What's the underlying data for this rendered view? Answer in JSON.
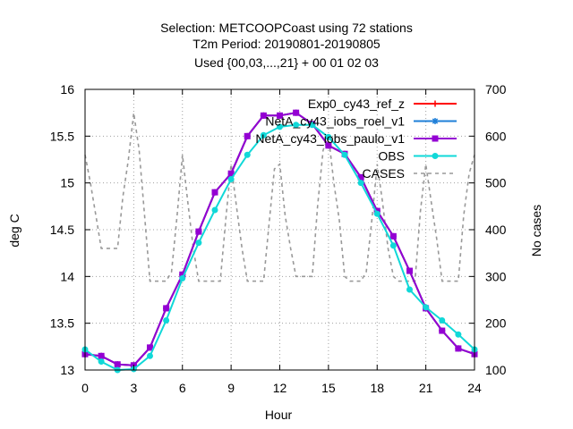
{
  "chart_data": {
    "type": "line",
    "title_lines": [
      "Selection: METCOOPCoast using    72 stations",
      "T2m   Period: 20190801-20190805",
      "Used {00,03,...,21} + 00 01 02 03"
    ],
    "xlabel": "Hour",
    "ylabel": "deg C",
    "y2label": "No cases",
    "xlim": [
      0,
      24
    ],
    "ylim": [
      13,
      16
    ],
    "y2lim": [
      100,
      700
    ],
    "xticks": [
      0,
      3,
      6,
      9,
      12,
      15,
      18,
      21,
      24
    ],
    "yticks": [
      "13",
      "13.5",
      "14",
      "14.5",
      "15",
      "15.5",
      "16"
    ],
    "y2ticks": [
      "100",
      "200",
      "300",
      "400",
      "500",
      "600",
      "700"
    ],
    "grid": true,
    "legend_position": "top-right",
    "x": [
      0,
      1,
      2,
      3,
      4,
      5,
      6,
      7,
      8,
      9,
      10,
      11,
      12,
      13,
      14,
      15,
      16,
      17,
      18,
      19,
      20,
      21,
      22,
      23,
      24
    ],
    "series": [
      {
        "name": "Exp0_cy43_ref_z",
        "color": "#ff0000",
        "marker": "plus",
        "values": [
          13.17,
          13.15,
          13.06,
          13.05,
          13.24,
          13.66,
          14.02,
          14.48,
          14.9,
          15.1,
          15.5,
          15.72,
          15.72,
          15.75,
          15.63,
          15.4,
          15.31,
          15.06,
          14.7,
          14.43,
          14.06,
          13.66,
          13.42,
          13.23,
          13.17
        ]
      },
      {
        "name": "NetA_cy43_iobs_roel_v1",
        "color": "#1e7fd8",
        "marker": "star",
        "values": [
          13.17,
          13.15,
          13.06,
          13.05,
          13.24,
          13.66,
          14.02,
          14.48,
          14.9,
          15.1,
          15.5,
          15.72,
          15.72,
          15.75,
          15.63,
          15.4,
          15.31,
          15.06,
          14.7,
          14.43,
          14.06,
          13.66,
          13.42,
          13.23,
          13.17
        ]
      },
      {
        "name": "NetA_cy43_iobs_paulo_v1",
        "color": "#9400d3",
        "marker": "square",
        "values": [
          13.17,
          13.15,
          13.06,
          13.05,
          13.24,
          13.66,
          14.02,
          14.48,
          14.9,
          15.1,
          15.5,
          15.72,
          15.72,
          15.75,
          15.63,
          15.4,
          15.31,
          15.06,
          14.7,
          14.43,
          14.06,
          13.66,
          13.42,
          13.23,
          13.17
        ]
      },
      {
        "name": "OBS",
        "color": "#10d8d8",
        "marker": "circle",
        "values": [
          13.22,
          13.09,
          13.0,
          13.01,
          13.15,
          13.53,
          13.98,
          14.36,
          14.71,
          15.04,
          15.3,
          15.51,
          15.6,
          15.62,
          15.62,
          15.49,
          15.3,
          15.0,
          14.67,
          14.33,
          13.86,
          13.67,
          13.53,
          13.38,
          13.22
        ]
      }
    ],
    "cases": {
      "name": "CASES",
      "color": "#999999",
      "axis": "y2",
      "x": [
        0,
        0.33,
        0.67,
        1,
        1.33,
        1.67,
        2,
        2.33,
        2.67,
        3,
        3.33,
        3.67,
        4,
        4.33,
        4.67,
        5,
        5.33,
        5.67,
        6,
        6.33,
        6.67,
        7,
        7.33,
        7.67,
        8,
        8.33,
        8.67,
        9,
        9.33,
        9.67,
        10,
        10.33,
        10.67,
        11,
        11.33,
        11.67,
        12,
        12.33,
        12.67,
        13,
        13.33,
        13.67,
        14,
        14.33,
        14.67,
        15,
        15.33,
        15.67,
        16,
        16.33,
        16.67,
        17,
        17.33,
        17.67,
        18,
        18.33,
        18.67,
        19,
        19.33,
        19.67,
        20,
        20.33,
        20.67,
        21,
        21.33,
        21.67,
        22,
        22.33,
        22.67,
        23,
        23.33,
        23.67,
        24
      ],
      "values": [
        560,
        500,
        430,
        360,
        360,
        360,
        360,
        470,
        550,
        650,
        570,
        430,
        290,
        290,
        290,
        290,
        310,
        430,
        560,
        460,
        360,
        290,
        290,
        290,
        290,
        290,
        420,
        540,
        450,
        360,
        290,
        290,
        290,
        290,
        410,
        530,
        540,
        430,
        360,
        300,
        300,
        300,
        300,
        450,
        570,
        600,
        500,
        420,
        300,
        290,
        290,
        290,
        310,
        420,
        540,
        460,
        360,
        300,
        290,
        290,
        290,
        290,
        440,
        540,
        460,
        380,
        290,
        290,
        290,
        290,
        430,
        520,
        560
      ]
    }
  }
}
